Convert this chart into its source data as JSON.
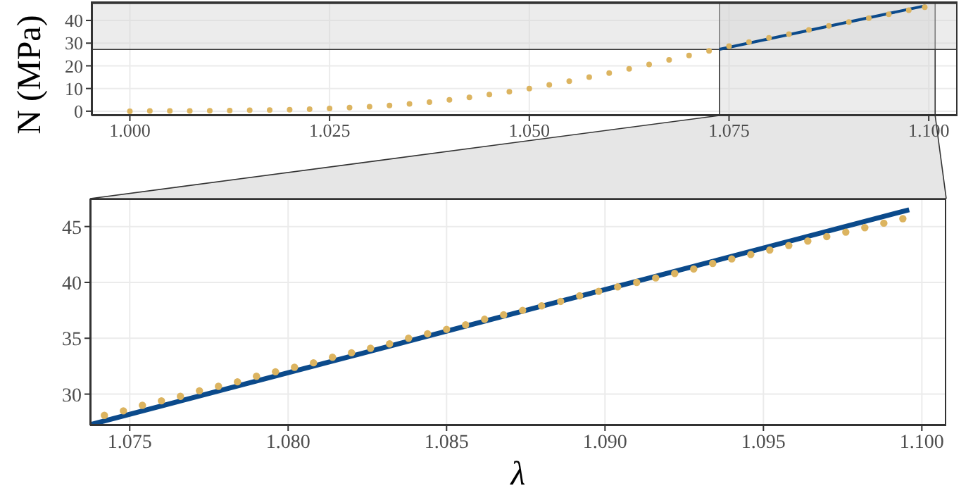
{
  "chart_data": [
    {
      "type": "scatter",
      "xlim": [
        0.9952,
        1.1036
      ],
      "ylim": [
        -1.9,
        48.4
      ],
      "xticks": [
        {
          "value": 1,
          "label": "1.000"
        },
        {
          "value": 1.025,
          "label": "1.025"
        },
        {
          "value": 1.05,
          "label": "1.050"
        },
        {
          "value": 1.075,
          "label": "1.075"
        },
        {
          "value": 1.1,
          "label": "1.100"
        }
      ],
      "yticks": [
        0,
        10,
        20,
        30,
        40
      ],
      "grid": true,
      "bands": [
        {
          "axis": "x",
          "from": 1.0738,
          "to": 1.1008,
          "color": "#d4d4d4"
        },
        {
          "axis": "y",
          "from": 27.2,
          "to": 47.5,
          "color": "#d4d4d4"
        }
      ],
      "series": [
        {
          "marker": "circle",
          "color": "#dcb460",
          "x": [
            1,
            1.0025,
            1.005,
            1.0075,
            1.01,
            1.0125,
            1.015,
            1.0175,
            1.02,
            1.0225,
            1.025,
            1.0275,
            1.03,
            1.0325,
            1.035,
            1.0375,
            1.04,
            1.0425,
            1.045,
            1.0475,
            1.05,
            1.0525,
            1.055,
            1.0575,
            1.06,
            1.0625,
            1.065,
            1.0675,
            1.07,
            1.0725,
            1.075,
            1.0775,
            1.08,
            1.0825,
            1.085,
            1.0875,
            1.09,
            1.0925,
            1.095,
            1.0975,
            1.0995
          ],
          "values": [
            0,
            0.1,
            0.1,
            0.1,
            0.2,
            0.3,
            0.4,
            0.5,
            0.7,
            0.9,
            1.2,
            1.6,
            2,
            2.5,
            3.2,
            4,
            5,
            6.1,
            7.3,
            8.6,
            10,
            11.6,
            13.2,
            15,
            16.8,
            18.7,
            20.6,
            22.6,
            24.6,
            26.6,
            28.7,
            30.5,
            32.3,
            34,
            35.8,
            37.6,
            39.3,
            41,
            42.7,
            44.5,
            45.8
          ]
        },
        {
          "type": "line",
          "marker": "none",
          "color": "#0b4a8b",
          "x": [
            1.0738,
            1.0996
          ],
          "values": [
            27.3,
            46.5
          ]
        }
      ]
    },
    {
      "type": "scatter",
      "xlim": [
        1.07375,
        1.10077
      ],
      "ylim": [
        27.2,
        47.5
      ],
      "xlabel": "λ",
      "ylabel": "N (MPa)",
      "xticks": [
        {
          "value": 1.075,
          "label": "1.075"
        },
        {
          "value": 1.08,
          "label": "1.080"
        },
        {
          "value": 1.085,
          "label": "1.085"
        },
        {
          "value": 1.09,
          "label": "1.090"
        },
        {
          "value": 1.095,
          "label": "1.095"
        },
        {
          "value": 1.1,
          "label": "1.100"
        }
      ],
      "yticks": [
        30,
        35,
        40,
        45
      ],
      "grid": true,
      "series": [
        {
          "type": "line",
          "marker": "none",
          "color": "#0b4a8b",
          "x": [
            1.0738,
            1.0996
          ],
          "values": [
            27.3,
            46.5
          ]
        },
        {
          "marker": "circle",
          "color": "#dcb460",
          "x": [
            1.0742,
            1.0748,
            1.0754,
            1.076,
            1.0766,
            1.0772,
            1.0778,
            1.0784,
            1.079,
            1.0796,
            1.0802,
            1.0808,
            1.0814,
            1.082,
            1.0826,
            1.0832,
            1.0838,
            1.0844,
            1.085,
            1.0856,
            1.0862,
            1.0868,
            1.0874,
            1.088,
            1.0886,
            1.0892,
            1.0898,
            1.0904,
            1.091,
            1.0916,
            1.0922,
            1.0928,
            1.0934,
            1.094,
            1.0946,
            1.0952,
            1.0958,
            1.0964,
            1.097,
            1.0976,
            1.0982,
            1.0988,
            1.0994
          ],
          "values": [
            28.1,
            28.5,
            29,
            29.4,
            29.8,
            30.3,
            30.7,
            31.1,
            31.6,
            32,
            32.4,
            32.8,
            33.3,
            33.7,
            34.1,
            34.5,
            35,
            35.4,
            35.8,
            36.2,
            36.7,
            37.1,
            37.5,
            37.9,
            38.3,
            38.8,
            39.2,
            39.6,
            40,
            40.4,
            40.8,
            41.2,
            41.7,
            42.1,
            42.5,
            42.9,
            43.3,
            43.7,
            44.1,
            44.5,
            44.9,
            45.3,
            45.7
          ]
        }
      ]
    }
  ]
}
